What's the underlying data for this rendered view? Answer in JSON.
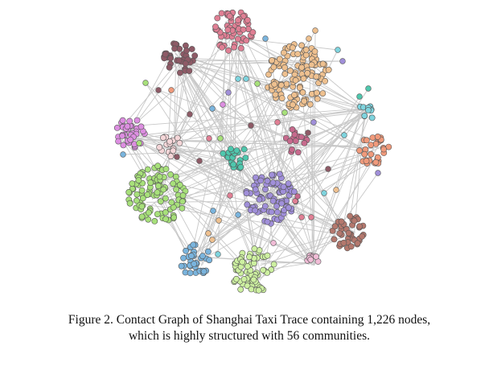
{
  "figure": {
    "caption_line1": "Figure 2. Contact Graph of Shanghai Taxi Trace containing 1,226 nodes,",
    "caption_line2": "which is highly structured with 56 communities."
  },
  "graph": {
    "community_colors": {
      "pink": "#e07f94",
      "mauve": "#8e5a66",
      "tan": "#eec08f",
      "lilac": "#dc8ee0",
      "blush": "#f4d6d8",
      "teal": "#4fc7ad",
      "rose": "#c76a8d",
      "salmon": "#f09a7b",
      "cyan": "#7fd4de",
      "lime": "#a7e07a",
      "purple": "#a08fd9",
      "brown": "#b4786d",
      "blue": "#7ab4dd",
      "lightgreen": "#cdf0a0",
      "lightpink": "#f0bcd6"
    },
    "edge_color": "#c8c8c8",
    "outline_color": "#555555"
  }
}
